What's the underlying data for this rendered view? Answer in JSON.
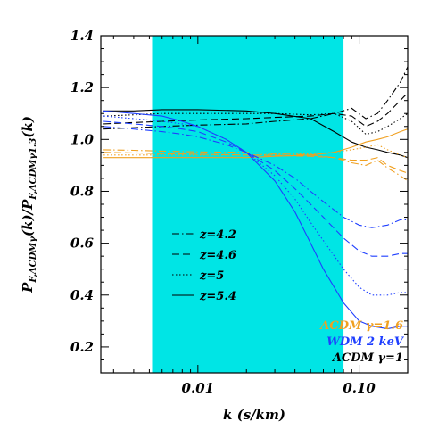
{
  "chart_data": {
    "type": "line",
    "xlabel": "k (s/km)",
    "ylabel": "P_{F,ΛCDMγ}(k)/P_{F,ΛCDMγ1.3}(k)",
    "ylabel_parts": {
      "main": "P",
      "num_sub": "F,ΛCDMγ",
      "mid": "(k)/P",
      "den_sub": "F,ΛCDMγ1.3",
      "end": "(k)"
    },
    "x_scale": "log",
    "xlim": [
      0.0025,
      0.2
    ],
    "ylim": [
      0.1,
      1.4
    ],
    "x_ticks": [
      {
        "value": 0.01,
        "label": "0.01"
      },
      {
        "value": 0.1,
        "label": "0.10"
      }
    ],
    "y_ticks": [
      {
        "value": 0.2,
        "label": "0.2"
      },
      {
        "value": 0.4,
        "label": "0.4"
      },
      {
        "value": 0.6,
        "label": "0.6"
      },
      {
        "value": 0.8,
        "label": "0.8"
      },
      {
        "value": 1.0,
        "label": "1.0"
      },
      {
        "value": 1.2,
        "label": "1.2"
      },
      {
        "value": 1.4,
        "label": "1.4"
      }
    ],
    "shaded_region": {
      "x_range": [
        0.0052,
        0.08
      ],
      "color": "#00e5e5"
    },
    "linestyle_legend": [
      {
        "label": "z=4.2",
        "dash": "dashdot"
      },
      {
        "label": "z=4.6",
        "dash": "dashed"
      },
      {
        "label": "z=5",
        "dash": "dotted"
      },
      {
        "label": "z=5.4",
        "dash": "solid"
      }
    ],
    "model_legend": [
      {
        "label": "ΛCDM γ=1.6",
        "color": "#f0a020"
      },
      {
        "label": "WDM 2 keV",
        "color": "#1f3fff"
      },
      {
        "label": "ΛCDM γ=1",
        "color": "#000000"
      }
    ],
    "series": [
      {
        "model": "ΛCDM γ=1",
        "z": "z=4.2",
        "dash": "dashdot",
        "color": "#000000",
        "x": [
          0.0026,
          0.004,
          0.006,
          0.01,
          0.02,
          0.03,
          0.05,
          0.07,
          0.09,
          0.11,
          0.13,
          0.15,
          0.18,
          0.2
        ],
        "y": [
          1.04,
          1.045,
          1.05,
          1.055,
          1.06,
          1.07,
          1.08,
          1.1,
          1.12,
          1.08,
          1.1,
          1.15,
          1.22,
          1.28
        ]
      },
      {
        "model": "ΛCDM γ=1",
        "z": "z=4.6",
        "dash": "dashed",
        "color": "#000000",
        "x": [
          0.0026,
          0.004,
          0.006,
          0.01,
          0.02,
          0.03,
          0.05,
          0.07,
          0.09,
          0.11,
          0.13,
          0.15,
          0.18,
          0.2
        ],
        "y": [
          1.06,
          1.065,
          1.07,
          1.075,
          1.08,
          1.085,
          1.09,
          1.1,
          1.09,
          1.05,
          1.07,
          1.1,
          1.15,
          1.18
        ]
      },
      {
        "model": "ΛCDM γ=1",
        "z": "z=5",
        "dash": "dotted",
        "color": "#000000",
        "x": [
          0.0026,
          0.004,
          0.006,
          0.01,
          0.02,
          0.03,
          0.05,
          0.07,
          0.09,
          0.11,
          0.13,
          0.15,
          0.18,
          0.2
        ],
        "y": [
          1.09,
          1.095,
          1.1,
          1.1,
          1.1,
          1.1,
          1.095,
          1.1,
          1.07,
          1.02,
          1.03,
          1.05,
          1.08,
          1.1
        ]
      },
      {
        "model": "ΛCDM γ=1",
        "z": "z=5.4",
        "dash": "solid",
        "color": "#000000",
        "x": [
          0.0026,
          0.004,
          0.006,
          0.01,
          0.02,
          0.03,
          0.05,
          0.07,
          0.09,
          0.11,
          0.13,
          0.15,
          0.18,
          0.2
        ],
        "y": [
          1.11,
          1.11,
          1.115,
          1.115,
          1.11,
          1.1,
          1.08,
          1.03,
          0.99,
          0.97,
          0.96,
          0.95,
          0.94,
          0.93
        ]
      },
      {
        "model": "ΛCDM γ=1.6",
        "z": "z=4.2",
        "dash": "dashdot",
        "color": "#f0a020",
        "x": [
          0.0026,
          0.004,
          0.006,
          0.01,
          0.02,
          0.03,
          0.05,
          0.07,
          0.09,
          0.11,
          0.13,
          0.15,
          0.18,
          0.2
        ],
        "y": [
          0.96,
          0.958,
          0.955,
          0.952,
          0.95,
          0.945,
          0.94,
          0.93,
          0.91,
          0.9,
          0.92,
          0.89,
          0.86,
          0.84
        ]
      },
      {
        "model": "ΛCDM γ=1.6",
        "z": "z=4.6",
        "dash": "dashed",
        "color": "#f0a020",
        "x": [
          0.0026,
          0.004,
          0.006,
          0.01,
          0.02,
          0.03,
          0.05,
          0.07,
          0.09,
          0.11,
          0.13,
          0.15,
          0.18,
          0.2
        ],
        "y": [
          0.95,
          0.948,
          0.945,
          0.943,
          0.94,
          0.938,
          0.935,
          0.93,
          0.92,
          0.92,
          0.93,
          0.9,
          0.88,
          0.87
        ]
      },
      {
        "model": "ΛCDM γ=1.6",
        "z": "z=5",
        "dash": "dotted",
        "color": "#f0a020",
        "x": [
          0.0026,
          0.004,
          0.006,
          0.01,
          0.02,
          0.03,
          0.05,
          0.07,
          0.09,
          0.11,
          0.13,
          0.15,
          0.18,
          0.2
        ],
        "y": [
          0.94,
          0.94,
          0.94,
          0.94,
          0.94,
          0.942,
          0.945,
          0.95,
          0.96,
          0.97,
          0.98,
          0.96,
          0.94,
          0.93
        ]
      },
      {
        "model": "ΛCDM γ=1.6",
        "z": "z=5.4",
        "dash": "solid",
        "color": "#f0a020",
        "x": [
          0.0026,
          0.004,
          0.006,
          0.01,
          0.02,
          0.03,
          0.05,
          0.07,
          0.09,
          0.11,
          0.13,
          0.15,
          0.18,
          0.2
        ],
        "y": [
          0.93,
          0.93,
          0.93,
          0.93,
          0.93,
          0.935,
          0.94,
          0.95,
          0.97,
          0.99,
          1.0,
          1.01,
          1.03,
          1.04
        ]
      },
      {
        "model": "WDM 2 keV",
        "z": "z=4.2",
        "dash": "dashdot",
        "color": "#1f3fff",
        "x": [
          0.0026,
          0.004,
          0.006,
          0.008,
          0.01,
          0.015,
          0.02,
          0.03,
          0.04,
          0.05,
          0.06,
          0.08,
          0.1,
          0.12,
          0.15,
          0.18,
          0.2
        ],
        "y": [
          1.05,
          1.04,
          1.03,
          1.02,
          1.01,
          0.98,
          0.95,
          0.9,
          0.85,
          0.8,
          0.76,
          0.7,
          0.67,
          0.66,
          0.67,
          0.69,
          0.69
        ]
      },
      {
        "model": "WDM 2 keV",
        "z": "z=4.6",
        "dash": "dashed",
        "color": "#1f3fff",
        "x": [
          0.0026,
          0.004,
          0.006,
          0.008,
          0.01,
          0.015,
          0.02,
          0.03,
          0.04,
          0.05,
          0.06,
          0.08,
          0.1,
          0.12,
          0.15,
          0.18,
          0.2
        ],
        "y": [
          1.07,
          1.06,
          1.05,
          1.04,
          1.03,
          0.99,
          0.95,
          0.88,
          0.81,
          0.75,
          0.7,
          0.62,
          0.57,
          0.55,
          0.55,
          0.56,
          0.56
        ]
      },
      {
        "model": "WDM 2 keV",
        "z": "z=5",
        "dash": "dotted",
        "color": "#1f3fff",
        "x": [
          0.0026,
          0.004,
          0.006,
          0.008,
          0.01,
          0.015,
          0.02,
          0.03,
          0.04,
          0.05,
          0.06,
          0.08,
          0.1,
          0.12,
          0.15,
          0.18,
          0.2
        ],
        "y": [
          1.09,
          1.08,
          1.07,
          1.06,
          1.05,
          1.0,
          0.95,
          0.86,
          0.77,
          0.68,
          0.61,
          0.5,
          0.43,
          0.4,
          0.4,
          0.41,
          0.41
        ]
      },
      {
        "model": "WDM 2 keV",
        "z": "z=5.4",
        "dash": "solid",
        "color": "#1f3fff",
        "x": [
          0.0026,
          0.004,
          0.006,
          0.008,
          0.01,
          0.015,
          0.02,
          0.03,
          0.04,
          0.05,
          0.06,
          0.08,
          0.1,
          0.12,
          0.15,
          0.18,
          0.2
        ],
        "y": [
          1.11,
          1.1,
          1.09,
          1.07,
          1.05,
          1.0,
          0.95,
          0.84,
          0.72,
          0.6,
          0.5,
          0.37,
          0.3,
          0.28,
          0.27,
          0.28,
          0.28
        ]
      }
    ]
  }
}
